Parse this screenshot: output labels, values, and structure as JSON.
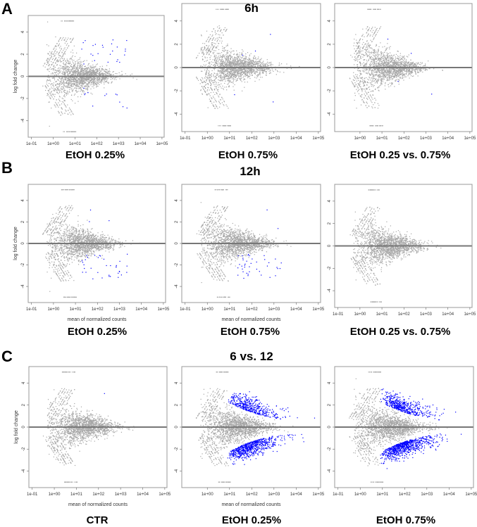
{
  "groups": [
    {
      "letter": "A",
      "title": "6h"
    },
    {
      "letter": "B",
      "title": "12h"
    },
    {
      "letter": "C",
      "title": "6 vs. 12"
    }
  ],
  "colors": {
    "points": "#a6a6a6",
    "significant": "#0000ff",
    "zero_line": "#777777",
    "frame": "#999999"
  },
  "chart_data": [
    {
      "type": "scatter",
      "group": "A",
      "title": "EtOH 0.25%",
      "xlabel": "",
      "ylabel": "log fold change",
      "x_scale": "log10",
      "xlim": [
        0.1,
        100000
      ],
      "ylim": [
        -5.5,
        5.5
      ],
      "x_ticks": [
        "1e-01",
        "1e+00",
        "1e+01",
        "1e+02",
        "1e+03",
        "1e+04",
        "1e+05"
      ],
      "y_ticks": [
        "-4",
        "-2",
        "0",
        "2",
        "4"
      ],
      "significant": {
        "up": 25,
        "down": 12
      }
    },
    {
      "type": "scatter",
      "group": "A",
      "title": "EtOH 0.75%",
      "xlabel": "",
      "ylabel": "",
      "x_scale": "log10",
      "xlim": [
        0.1,
        100000
      ],
      "ylim": [
        -5.5,
        5.5
      ],
      "x_ticks": [
        "1e-01",
        "1e+00",
        "1e+01",
        "1e+02",
        "1e+03",
        "1e+04",
        "1e+05"
      ],
      "y_ticks": [
        "-4",
        "-2",
        "0",
        "2",
        "4"
      ],
      "significant": {
        "up": 3,
        "down": 2
      }
    },
    {
      "type": "scatter",
      "group": "A",
      "title": "EtOH 0.25 vs. 0.75%",
      "xlabel": "",
      "ylabel": "",
      "x_scale": "log10",
      "xlim": [
        0.1,
        100000
      ],
      "ylim": [
        -5.5,
        5.5
      ],
      "x_ticks": [
        "1e+00",
        "1e+01",
        "1e+02",
        "1e+03",
        "1e+04",
        "1e+05"
      ],
      "y_ticks": [
        "-4",
        "-2",
        "0",
        "2",
        "4"
      ],
      "significant": {
        "up": 2,
        "down": 2
      }
    },
    {
      "type": "scatter",
      "group": "B",
      "title": "EtOH 0.25%",
      "xlabel": "mean of normalized counts",
      "ylabel": "log fold change",
      "x_scale": "log10",
      "xlim": [
        0.1,
        100000
      ],
      "ylim": [
        -5.5,
        5.5
      ],
      "x_ticks": [
        "1e-01",
        "1e+00",
        "1e+01",
        "1e+02",
        "1e+03",
        "1e+04",
        "1e+05"
      ],
      "y_ticks": [
        "-4",
        "-2",
        "0",
        "2",
        "4"
      ],
      "significant": {
        "up": 3,
        "down": 35
      }
    },
    {
      "type": "scatter",
      "group": "B",
      "title": "EtOH 0.75%",
      "xlabel": "mean of normalized counts",
      "ylabel": "",
      "x_scale": "log10",
      "xlim": [
        0.1,
        100000
      ],
      "ylim": [
        -5.5,
        5.5
      ],
      "x_ticks": [
        "1e-01",
        "1e+00",
        "1e+01",
        "1e+02",
        "1e+03",
        "1e+04",
        "1e+05"
      ],
      "y_ticks": [
        "-4",
        "-2",
        "0",
        "2",
        "4"
      ],
      "significant": {
        "up": 2,
        "down": 40
      }
    },
    {
      "type": "scatter",
      "group": "B",
      "title": "EtOH 0.25 vs. 0.75%",
      "xlabel": "",
      "ylabel": "",
      "x_scale": "log10",
      "xlim": [
        0.1,
        100000
      ],
      "ylim": [
        -5.5,
        5.5
      ],
      "x_ticks": [
        "1e-01",
        "1e+00",
        "1e+01",
        "1e+02",
        "1e+03",
        "1e+04",
        "1e+05"
      ],
      "y_ticks": [
        "-4",
        "-2",
        "0",
        "2",
        "4"
      ],
      "significant": {
        "up": 0,
        "down": 0
      }
    },
    {
      "type": "scatter",
      "group": "C",
      "title": "CTR",
      "xlabel": "mean of normalized counts",
      "ylabel": "log fold change",
      "x_scale": "log10",
      "xlim": [
        0.1,
        100000
      ],
      "ylim": [
        -5.5,
        5.5
      ],
      "x_ticks": [
        "1e-01",
        "1e+00",
        "1e+01",
        "1e+02",
        "1e+03",
        "1e+04",
        "1e+05"
      ],
      "y_ticks": [
        "-4",
        "-2",
        "0",
        "2",
        "4"
      ],
      "significant": {
        "up": 1,
        "down": 0
      }
    },
    {
      "type": "scatter",
      "group": "C",
      "title": "EtOH 0.25%",
      "xlabel": "mean of normalized counts",
      "ylabel": "",
      "x_scale": "log10",
      "xlim": [
        0.1,
        100000
      ],
      "ylim": [
        -5.5,
        5.5
      ],
      "x_ticks": [
        "1e+00",
        "1e+01",
        "1e+02",
        "1e+03",
        "1e+04",
        "1e+05"
      ],
      "y_ticks": [
        "-4",
        "-2",
        "0",
        "2",
        "4"
      ],
      "significant": {
        "up": 450,
        "down": 700
      }
    },
    {
      "type": "scatter",
      "group": "C",
      "title": "EtOH 0.75%",
      "xlabel": "",
      "ylabel": "",
      "x_scale": "log10",
      "xlim": [
        0.1,
        100000
      ],
      "ylim": [
        -5.5,
        5.5
      ],
      "x_ticks": [
        "1e-01",
        "1e+00",
        "1e+01",
        "1e+02",
        "1e+03",
        "1e+04",
        "1e+05"
      ],
      "y_ticks": [
        "-4",
        "-2",
        "0",
        "2",
        "4"
      ],
      "significant": {
        "up": 500,
        "down": 800
      }
    }
  ]
}
